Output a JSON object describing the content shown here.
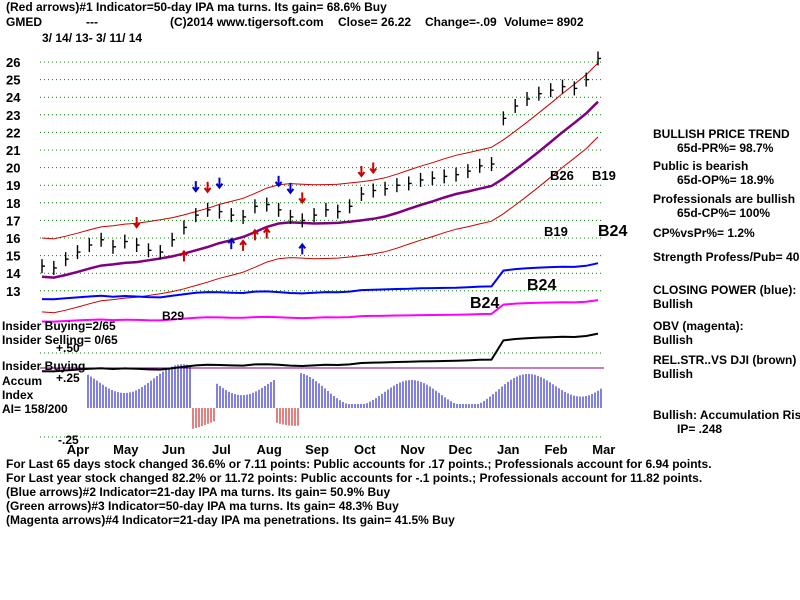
{
  "header": {
    "line1": "(Red arrows)#1 Indicator=50-day IPA ma turns. Its gain= 68.6% Buy",
    "ticker": "GMED",
    "dashes": "---",
    "copyright": "(C)2014 www.tigersoft.com",
    "close": "Close=  26.22",
    "change": "Change=-.09",
    "volume": "Volume= 8902",
    "date_range": "3/ 14/ 13-  3/ 11/ 14"
  },
  "chart_data": {
    "type": "line",
    "price_ticks": [
      "26",
      "25",
      "24",
      "23",
      "22",
      "21",
      "20",
      "19",
      "18",
      "17",
      "16",
      "15",
      "14",
      "13"
    ],
    "month_ticks": [
      "Apr",
      "May",
      "Jun",
      "Jul",
      "Aug",
      "Sep",
      "Oct",
      "Nov",
      "Dec",
      "Jan",
      "Feb",
      "Mar"
    ],
    "close": [
      14.4,
      14.3,
      14.8,
      15.2,
      15.6,
      15.9,
      15.5,
      15.8,
      15.6,
      15.3,
      15.2,
      15.9,
      16.6,
      17.3,
      17.6,
      17.5,
      17.3,
      17.2,
      17.8,
      17.9,
      17.6,
      17.2,
      17.0,
      17.3,
      17.6,
      17.5,
      17.8,
      18.5,
      18.7,
      18.8,
      19.0,
      19.1,
      19.3,
      19.4,
      19.5,
      19.6,
      19.8,
      20.1,
      20.2,
      22.8,
      23.5,
      23.9,
      24.2,
      24.4,
      24.6,
      24.5,
      25.0,
      26.2
    ],
    "annotations": [
      "B29",
      "B19",
      "B26",
      "B19",
      "B24",
      "B24",
      "B24"
    ],
    "lower_scale": [
      "+.50",
      "+.25",
      "-.25"
    ],
    "colors": {
      "price": "#000000",
      "closing_power": "#0000ff",
      "obv": "#ff00ff",
      "relstr": "#000000",
      "ma50": "#800080",
      "band": "#cc0000",
      "grid": "#008000"
    }
  },
  "overlays": {
    "insider_buying_top": "Insider Buying=2/65",
    "insider_selling": "Insider Selling= 0/65",
    "insider_buying_low": "Insider Buying",
    "accum": "Accum",
    "index": "Index",
    "ai": "AI= 158/200"
  },
  "right_panel": {
    "trend_title": "BULLISH PRICE TREND",
    "pr": "65d-PR%= 98.7%",
    "public": "Public is bearish",
    "op": "65d-OP%= 18.9%",
    "pros": "Professionals are bullish",
    "cp": "65d-CP%= 100%",
    "cpvspr": "CP%vsPr%=  1.2%",
    "strength": "Strength Profess/Pub= 40",
    "closing_power": "CLOSING POWER (blue):",
    "cp_state": "Bullish",
    "obv": "OBV (magenta):",
    "obv_state": "Bullish",
    "relstr": "REL.STR..VS DJI (brown)",
    "relstr_state": "Bullish",
    "accum_risi": "Bullish: Accumulation Risi",
    "ip": "IP=  .248"
  },
  "footer": {
    "l1": "For Last 65 days stock changed  36.6% or  7.11 points:  Public accounts for  .17 points.;  Professionals account for  6.94 points.",
    "l2": "For Last year stock changed  82.2% or  11.72 points:  Public accounts for -.1 points.;  Professionals account for  11.82 points.",
    "l3": "(Blue arrows)#2 Indicator=21-day IPA ma turns. Its gain= 50.9% Buy",
    "l4": "(Green arrows)#3 Indicator=50-day IPA ma turns. Its gain= 48.3% Buy",
    "l5": "(Magenta arrows)#4 Indicator=21-day IPA ma penetrations. Its gain= 41.5% Buy"
  }
}
